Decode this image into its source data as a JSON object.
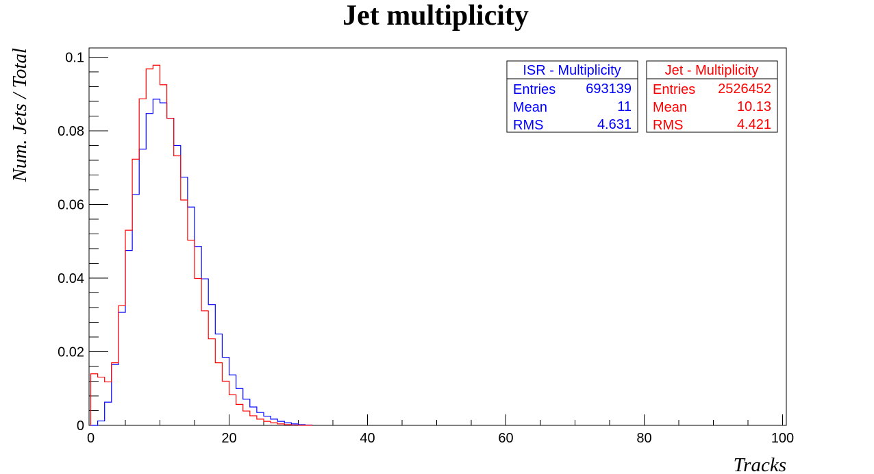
{
  "chart_data": {
    "type": "histogram",
    "title": "Jet multiplicity",
    "xlabel": "Tracks",
    "ylabel": "Num. Jets / Total",
    "xlim": [
      0,
      100
    ],
    "ylim": [
      0,
      0.1025
    ],
    "bin_width": 1,
    "x_ticks": [
      "0",
      "20",
      "40",
      "60",
      "80",
      "100"
    ],
    "y_ticks": [
      "0",
      "0.02",
      "0.04",
      "0.06",
      "0.08",
      "0.1"
    ],
    "series": [
      {
        "name": "ISR - Multiplicity",
        "color": "#0000ff",
        "stats": {
          "entries_label": "Entries",
          "entries": "693139",
          "mean_label": "Mean",
          "mean": "11",
          "rms_label": "RMS",
          "rms": "4.631"
        },
        "values": [
          0,
          0.0012,
          0.0063,
          0.0165,
          0.0307,
          0.0475,
          0.0627,
          0.075,
          0.0847,
          0.0886,
          0.0876,
          0.0834,
          0.076,
          0.0674,
          0.0593,
          0.0486,
          0.0398,
          0.0328,
          0.0248,
          0.0185,
          0.0137,
          0.01,
          0.0071,
          0.005,
          0.0035,
          0.0025,
          0.0017,
          0.0011,
          0.0007,
          0.0004,
          0.0002,
          0.0001
        ]
      },
      {
        "name": "Jet - Multiplicity",
        "color": "#ff0000",
        "stats": {
          "entries_label": "Entries",
          "entries": "2526452",
          "mean_label": "Mean",
          "mean": "10.13",
          "rms_label": "RMS",
          "rms": "4.421"
        },
        "values": [
          0.014,
          0.0131,
          0.0118,
          0.017,
          0.0325,
          0.053,
          0.0723,
          0.0887,
          0.0968,
          0.0978,
          0.0925,
          0.0834,
          0.0732,
          0.0612,
          0.0503,
          0.0399,
          0.0311,
          0.0235,
          0.017,
          0.012,
          0.0083,
          0.0057,
          0.0039,
          0.0026,
          0.0017,
          0.0011,
          0.0007,
          0.0004,
          0.0002,
          0.0001,
          5e-05,
          2e-05
        ]
      }
    ]
  }
}
